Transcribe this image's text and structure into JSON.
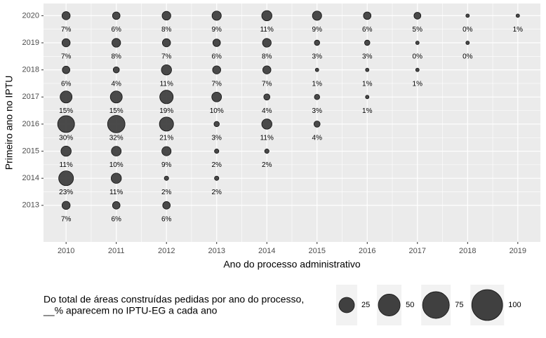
{
  "chart_data": {
    "type": "bubble",
    "x_label": "Ano do processo administrativo",
    "y_label": "Primeiro ano no IPTU",
    "xlim": [
      2009.55,
      2019.45
    ],
    "ylim": [
      2011.65,
      2020.45
    ],
    "xticks": [
      2010,
      2011,
      2012,
      2013,
      2014,
      2015,
      2016,
      2017,
      2018,
      2019
    ],
    "yticks": [
      2013,
      2014,
      2015,
      2016,
      2017,
      2018,
      2019,
      2020
    ],
    "grid": true,
    "color": "#404040",
    "series": [
      {
        "x": [
          2010,
          2010,
          2010,
          2010,
          2010,
          2010,
          2010,
          2010,
          2011,
          2011,
          2011,
          2011,
          2011,
          2011,
          2011,
          2011,
          2012,
          2012,
          2012,
          2012,
          2012,
          2012,
          2012,
          2012,
          2013,
          2013,
          2013,
          2013,
          2013,
          2013,
          2013,
          2014,
          2014,
          2014,
          2014,
          2014,
          2014,
          2015,
          2015,
          2015,
          2015,
          2015,
          2016,
          2016,
          2016,
          2016,
          2017,
          2017,
          2017,
          2018,
          2018,
          2019
        ],
        "values": [
          2020,
          2019,
          2018,
          2017,
          2016,
          2015,
          2014,
          2013,
          2020,
          2019,
          2018,
          2017,
          2016,
          2015,
          2014,
          2013,
          2020,
          2019,
          2018,
          2017,
          2016,
          2015,
          2014,
          2013,
          2020,
          2019,
          2018,
          2017,
          2016,
          2015,
          2014,
          2020,
          2019,
          2018,
          2017,
          2016,
          2015,
          2020,
          2019,
          2018,
          2017,
          2016,
          2020,
          2019,
          2018,
          2017,
          2020,
          2019,
          2018,
          2020,
          2019,
          2020
        ],
        "size": [
          7,
          7,
          6,
          15,
          30,
          11,
          23,
          7,
          6,
          8,
          4,
          15,
          32,
          10,
          11,
          6,
          8,
          7,
          11,
          19,
          21,
          9,
          2,
          6,
          9,
          6,
          7,
          10,
          3,
          2,
          2,
          11,
          8,
          7,
          4,
          11,
          2,
          9,
          3,
          1,
          3,
          4,
          6,
          3,
          1,
          1,
          5,
          0,
          1,
          0,
          0,
          1
        ],
        "value_labels": [
          "7%",
          "7%",
          "6%",
          "15%",
          "30%",
          "11%",
          "23%",
          "7%",
          "6%",
          "8%",
          "4%",
          "15%",
          "32%",
          "10%",
          "11%",
          "6%",
          "8%",
          "7%",
          "11%",
          "19%",
          "21%",
          "9%",
          "2%",
          "6%",
          "9%",
          "6%",
          "7%",
          "10%",
          "3%",
          "2%",
          "2%",
          "11%",
          "8%",
          "7%",
          "4%",
          "11%",
          "2%",
          "9%",
          "3%",
          "1%",
          "3%",
          "4%",
          "6%",
          "3%",
          "1%",
          "1%",
          "5%",
          "0%",
          "1%",
          "0%",
          "0%",
          "1%"
        ]
      }
    ],
    "size_legend": {
      "title": [
        "Do total de áreas construídas pedidas por ano do processo,",
        "__% aparecem no IPTU-EG a cada ano"
      ],
      "values": [
        25,
        50,
        75,
        100
      ]
    }
  }
}
